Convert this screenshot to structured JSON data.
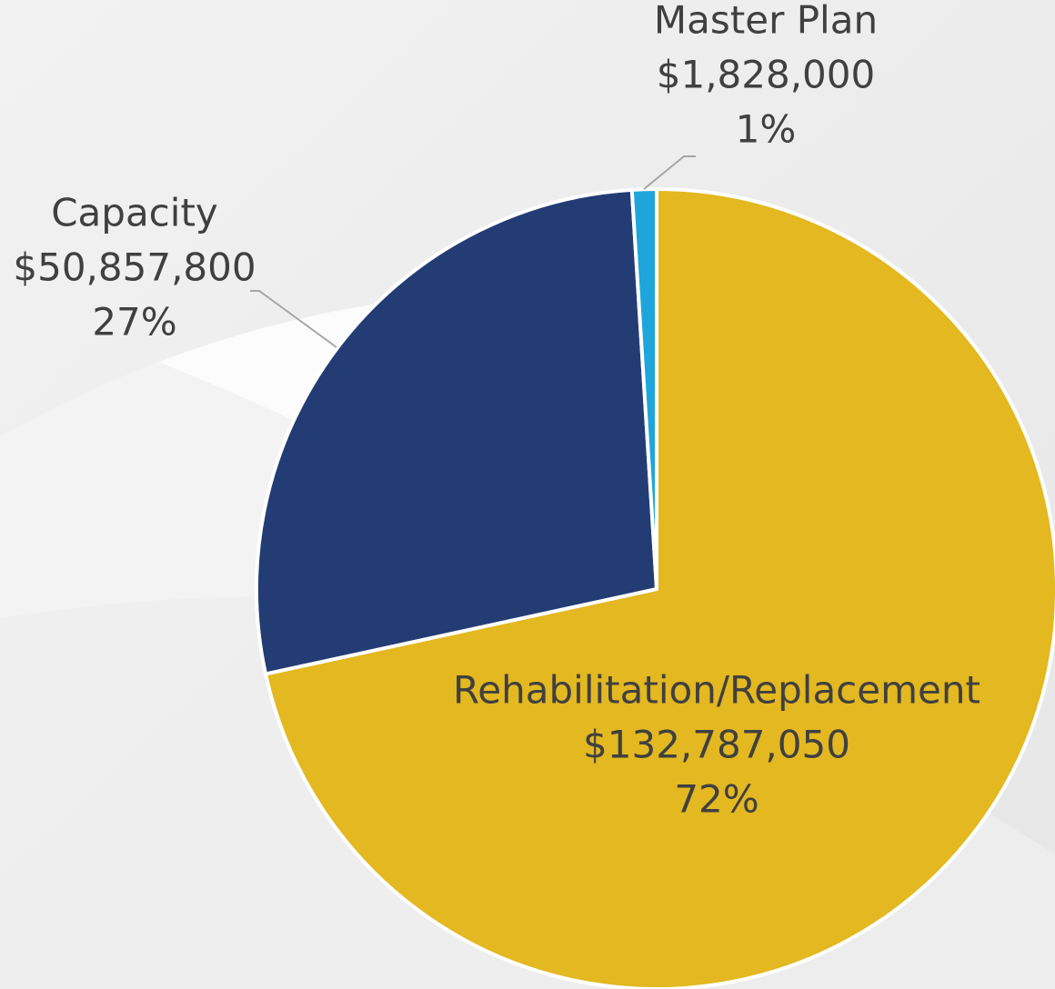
{
  "chart_data": {
    "type": "pie",
    "categories": [
      "Rehabilitation/Replacement",
      "Capacity",
      "Master Plan"
    ],
    "values": [
      132787050,
      50857800,
      1828000
    ],
    "value_labels": [
      "$132,787,050",
      "$50,857,800",
      "$1,828,000"
    ],
    "percentages": [
      72,
      27,
      1
    ],
    "percentage_labels": [
      "72%",
      "27%",
      "1%"
    ],
    "colors": [
      "#e3b820",
      "#233c74",
      "#1ea6dc"
    ]
  }
}
